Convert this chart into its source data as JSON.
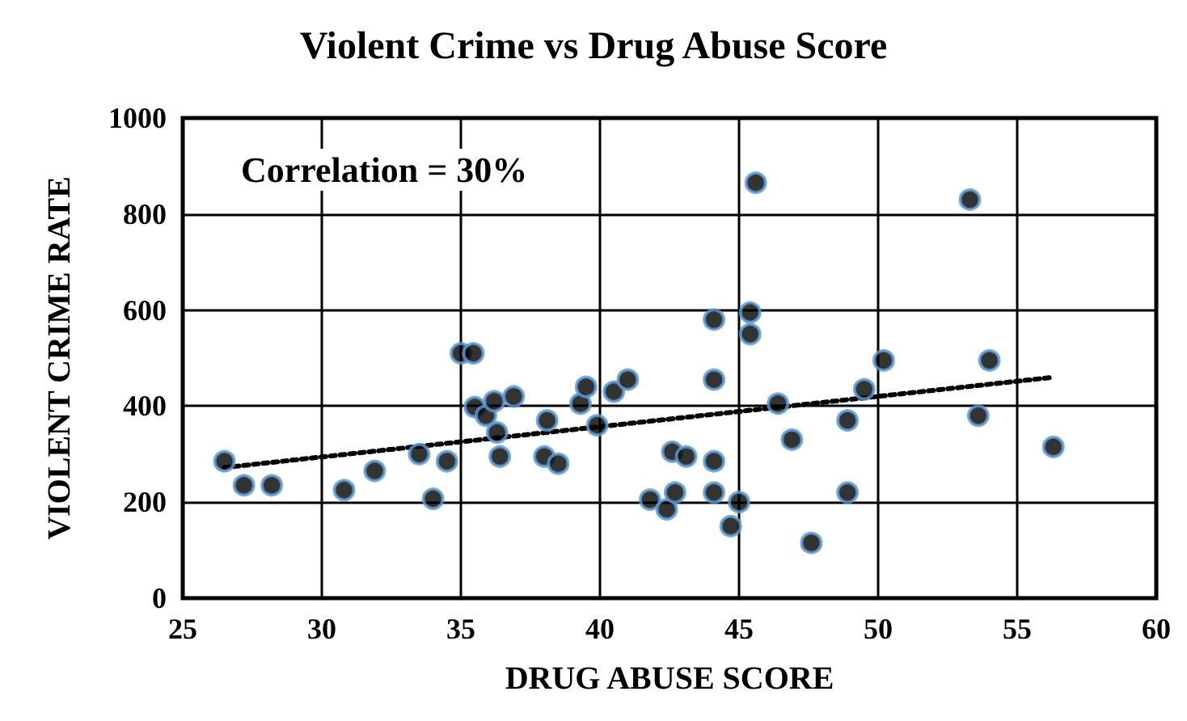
{
  "chart_data": {
    "type": "scatter",
    "title": "Violent Crime vs Drug Abuse Score",
    "xlabel": "DRUG ABUSE SCORE",
    "ylabel": "VIOLENT CRIME RATE",
    "annotations": [
      "Correlation = 30%"
    ],
    "xlim": [
      25,
      60
    ],
    "xticks": [
      25,
      30,
      35,
      40,
      45,
      50,
      55,
      60
    ],
    "ylim": [
      0,
      1000
    ],
    "yticks": [
      0,
      200,
      400,
      600,
      800,
      1000
    ],
    "grid": true,
    "marker": "circle",
    "series": [
      {
        "type": "scatter",
        "color": "#000000",
        "x": [
          26.5,
          27.2,
          28.2,
          30.8,
          31.9,
          33.5,
          34,
          34.5,
          35,
          35.45,
          35.5,
          35.9,
          36.2,
          36.3,
          36.4,
          36.9,
          38,
          38.1,
          38.5,
          39.3,
          39.5,
          39.9,
          40.5,
          41,
          41.8,
          42.4,
          42.7,
          42.6,
          43.1,
          44.1,
          44.1,
          44.1,
          44.1,
          44.7,
          45,
          45.4,
          45.4,
          45.6,
          46.4,
          46.9,
          47.6,
          48.9,
          48.9,
          49.5,
          50.2,
          53.3,
          53.6,
          54,
          56.3
        ],
        "values": [
          285,
          235,
          235,
          225,
          265,
          300,
          207,
          285,
          510,
          510,
          398,
          380,
          410,
          345,
          295,
          420,
          295,
          370,
          280,
          405,
          440,
          360,
          430,
          455,
          205,
          185,
          220,
          305,
          295,
          580,
          455,
          285,
          220,
          150,
          200,
          595,
          550,
          865,
          405,
          330,
          115,
          220,
          370,
          435,
          495,
          830,
          380,
          495,
          315
        ]
      },
      {
        "type": "line",
        "color": "#000000",
        "line_style": "dotted",
        "marker": "none",
        "x": [
          26.5,
          56.3
        ],
        "values": [
          272,
          460
        ]
      }
    ]
  }
}
